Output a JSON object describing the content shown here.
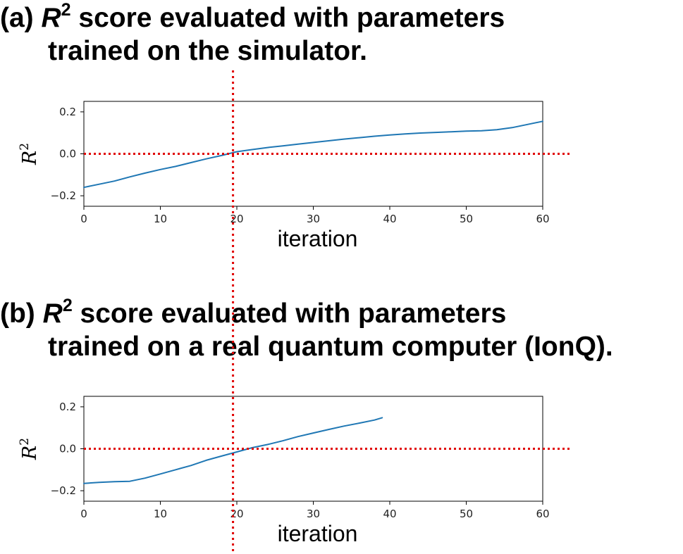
{
  "headings": [
    {
      "prefix": "(a) ",
      "r": "R",
      "sup": "2",
      "line1_rest": " score evaluated with parameters",
      "line2": "trained on the simulator."
    },
    {
      "prefix": "(b) ",
      "r": "R",
      "sup": "2",
      "line1_rest": " score evaluated with parameters",
      "line2": "trained on a real quantum computer (IonQ)."
    }
  ],
  "colors": {
    "series": "#1f77b4",
    "reference": "#e00000",
    "axes": "#000000"
  },
  "chart_data": [
    {
      "type": "line",
      "xlabel": "iteration",
      "ylabel": "R",
      "ylabel_sup": "2",
      "xlim": [
        0,
        60
      ],
      "ylim": [
        -0.25,
        0.25
      ],
      "xticks": [
        0,
        10,
        20,
        30,
        40,
        50,
        60
      ],
      "yticks": [
        -0.2,
        0.0,
        0.2
      ],
      "ytick_labels": [
        "−0.2",
        "0.0",
        "0.2"
      ],
      "grid": false,
      "series": [
        {
          "x": [
            0,
            2,
            4,
            6,
            8,
            10,
            12,
            14,
            16,
            18,
            20,
            22,
            24,
            26,
            28,
            30,
            32,
            34,
            36,
            38,
            40,
            42,
            44,
            46,
            48,
            50,
            52,
            54,
            56,
            58,
            60
          ],
          "values": [
            -0.16,
            -0.145,
            -0.13,
            -0.11,
            -0.092,
            -0.075,
            -0.06,
            -0.042,
            -0.024,
            -0.008,
            0.01,
            0.02,
            0.03,
            0.038,
            0.046,
            0.054,
            0.062,
            0.07,
            0.077,
            0.084,
            0.09,
            0.095,
            0.099,
            0.102,
            0.105,
            0.108,
            0.11,
            0.115,
            0.125,
            0.14,
            0.155
          ]
        }
      ],
      "reference_lines": {
        "y": 0.0,
        "x": 19.5
      }
    },
    {
      "type": "line",
      "xlabel": "iteration",
      "ylabel": "R",
      "ylabel_sup": "2",
      "xlim": [
        0,
        60
      ],
      "ylim": [
        -0.25,
        0.25
      ],
      "xticks": [
        0,
        10,
        20,
        30,
        40,
        50,
        60
      ],
      "yticks": [
        -0.2,
        0.0,
        0.2
      ],
      "ytick_labels": [
        "−0.2",
        "0.0",
        "0.2"
      ],
      "grid": false,
      "series": [
        {
          "x": [
            0,
            2,
            4,
            6,
            8,
            10,
            12,
            14,
            16,
            18,
            20,
            22,
            24,
            26,
            28,
            30,
            32,
            34,
            36,
            38,
            39
          ],
          "values": [
            -0.165,
            -0.16,
            -0.157,
            -0.155,
            -0.14,
            -0.12,
            -0.1,
            -0.08,
            -0.055,
            -0.035,
            -0.015,
            0.005,
            0.02,
            0.038,
            0.058,
            0.075,
            0.092,
            0.108,
            0.122,
            0.137,
            0.148
          ]
        }
      ],
      "reference_lines": {
        "y": 0.0,
        "x": 19.5
      }
    }
  ]
}
